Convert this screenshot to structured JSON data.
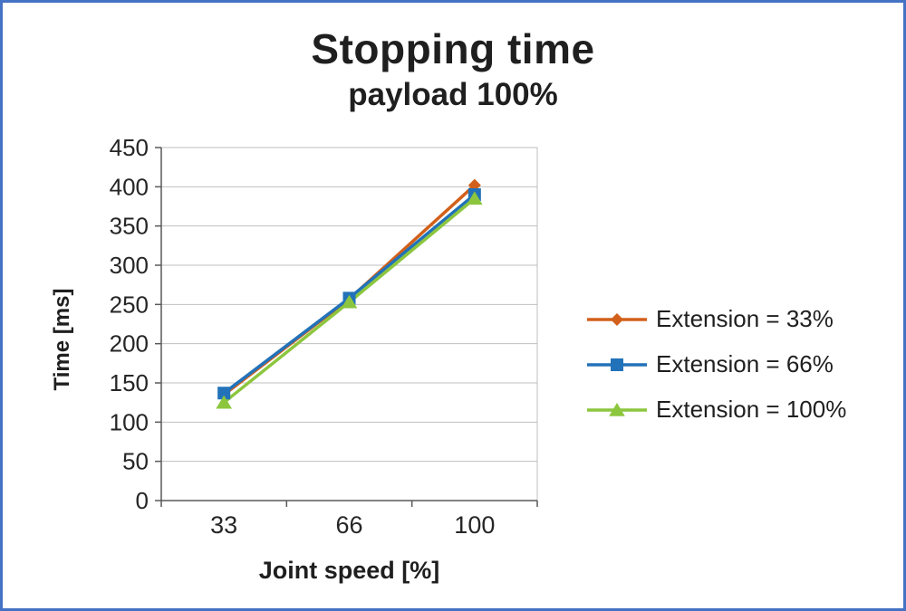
{
  "page": {
    "border_color": "#4472c4",
    "background": "#ffffff"
  },
  "chart_data": {
    "type": "line",
    "title": "Stopping time",
    "subtitle": "payload 100%",
    "xlabel": "Joint speed [%]",
    "ylabel": "Time [ms]",
    "categories": [
      "33",
      "66",
      "100"
    ],
    "series": [
      {
        "name": "Extension = 33%",
        "marker": "diamond",
        "color": "#d2601a",
        "values": [
          135,
          257,
          402
        ]
      },
      {
        "name": "Extension = 66%",
        "marker": "square",
        "color": "#2272b9",
        "values": [
          137,
          258,
          390
        ]
      },
      {
        "name": "Extension = 100%",
        "marker": "triangle",
        "color": "#8cc63e",
        "values": [
          125,
          253,
          385
        ]
      }
    ],
    "ylim": [
      0,
      450
    ],
    "ytick_step": 50,
    "grid": true,
    "legend_position": "right",
    "grid_color": "#bfbfbf",
    "axis_color": "#595959",
    "tick_text_color": "#262626"
  }
}
